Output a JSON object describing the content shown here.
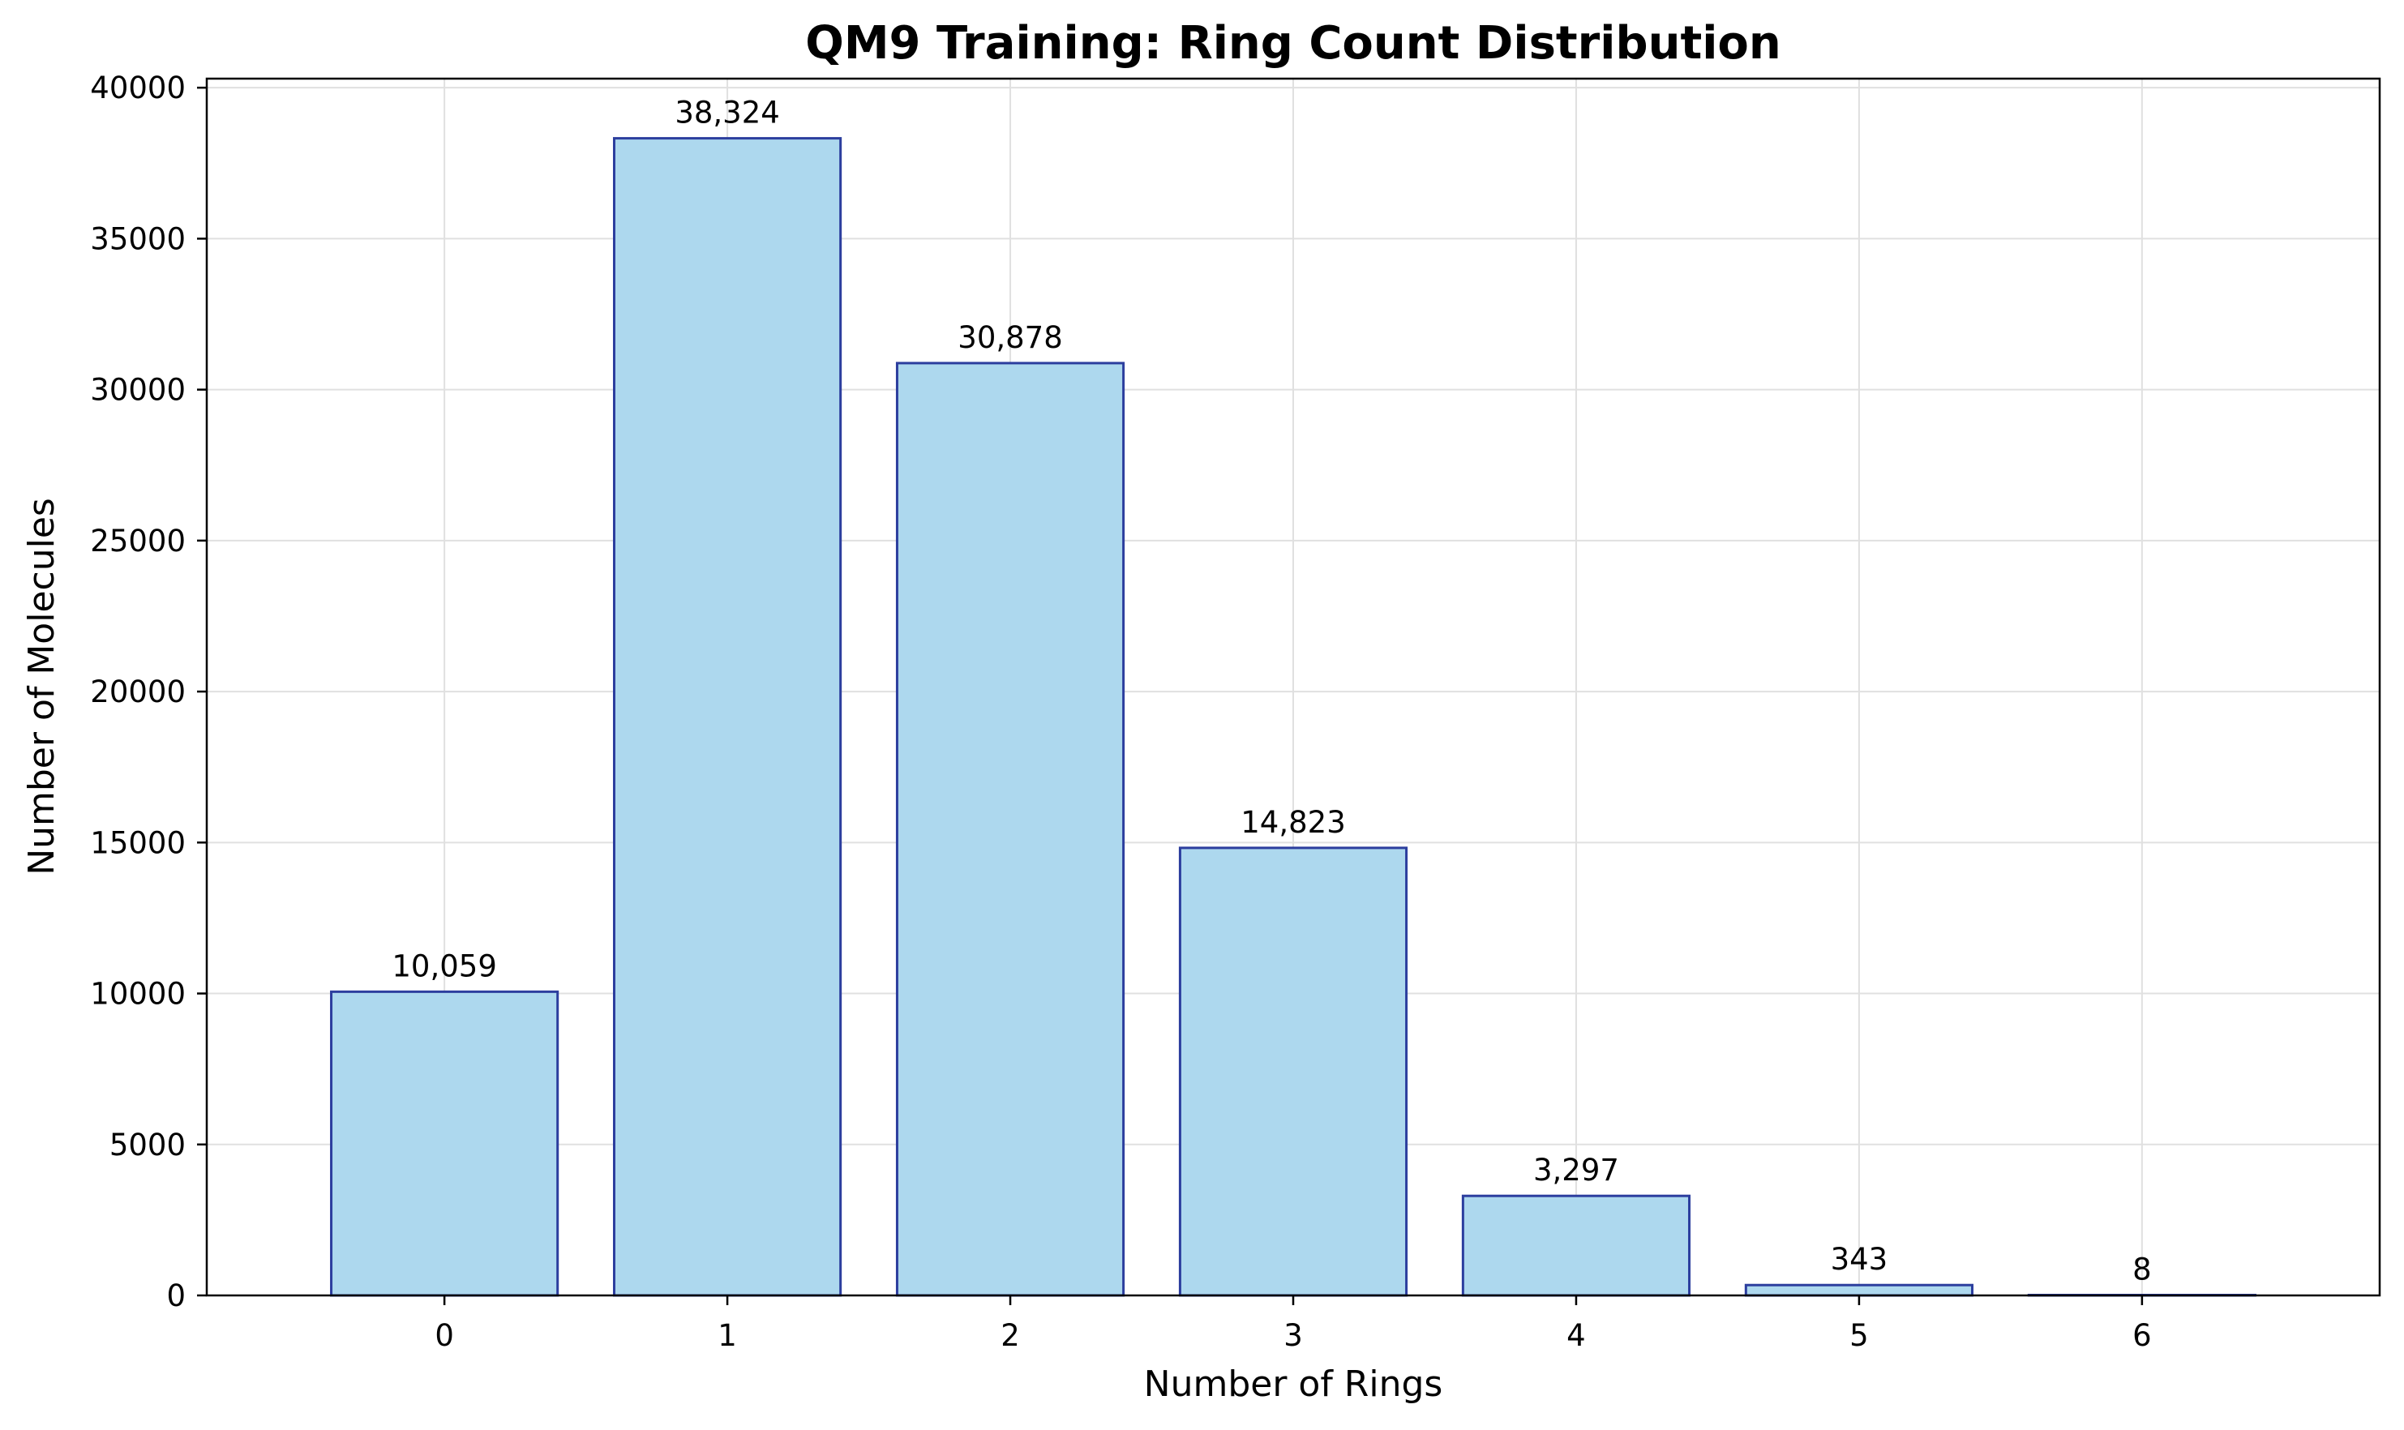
{
  "chart_data": {
    "type": "bar",
    "title": "QM9 Training: Ring Count Distribution",
    "xlabel": "Number of Rings",
    "ylabel": "Number of Molecules",
    "categories": [
      "0",
      "1",
      "2",
      "3",
      "4",
      "5",
      "6"
    ],
    "values": [
      10059,
      38324,
      30878,
      14823,
      3297,
      343,
      8
    ],
    "value_labels": [
      "10,059",
      "38,324",
      "30,878",
      "14,823",
      "3,297",
      "343",
      "8"
    ],
    "ylim": [
      0,
      40300
    ],
    "yticks": [
      0,
      5000,
      10000,
      15000,
      20000,
      25000,
      30000,
      35000,
      40000
    ],
    "ytick_labels": [
      "0",
      "5000",
      "10000",
      "15000",
      "20000",
      "25000",
      "30000",
      "35000",
      "40000"
    ],
    "grid": true,
    "colors": {
      "bar_fill": "#add8ee",
      "bar_edge": "#2c3e9e",
      "grid": "#e0e0e0",
      "axis": "#000000"
    }
  }
}
